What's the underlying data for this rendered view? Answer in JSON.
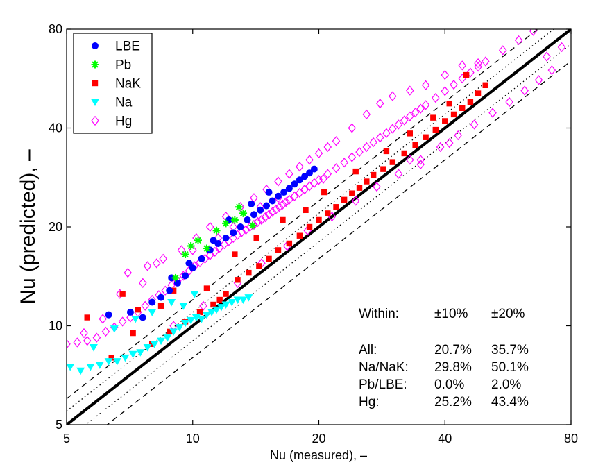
{
  "chart_data": {
    "type": "scatter",
    "title": "",
    "xlabel": "Nu (measured), –",
    "ylabel": "Nu (predicted), –",
    "x_scale": "log",
    "y_scale": "log",
    "xlim": [
      5,
      80
    ],
    "ylim": [
      5,
      80
    ],
    "x_ticks": [
      "5",
      "10",
      "20",
      "40",
      "80"
    ],
    "y_ticks": [
      "5",
      "10",
      "20",
      "40",
      "80"
    ],
    "grid": false,
    "legend_position": "top-left",
    "reference_lines": [
      {
        "kind": "1:1",
        "factor": 1.0,
        "style": "solid"
      },
      {
        "kind": "±10%",
        "factor": 1.1,
        "style": "dotted"
      },
      {
        "kind": "±10%",
        "factor": 0.9,
        "style": "dotted"
      },
      {
        "kind": "±20%",
        "factor": 1.2,
        "style": "dashed"
      },
      {
        "kind": "±20%",
        "factor": 0.8,
        "style": "dashed"
      }
    ],
    "series": [
      {
        "name": "LBE",
        "marker": "circle",
        "color": "#0000ff",
        "x": [
          6.3,
          7.1,
          7.6,
          8.0,
          8.4,
          8.8,
          9.2,
          9.6,
          10.0,
          10.5,
          11.0,
          11.5,
          12.0,
          12.5,
          13.0,
          13.5,
          14.0,
          14.5,
          15.0,
          15.5,
          16.0,
          16.5,
          17.0,
          17.5,
          18.0,
          18.5,
          19.0,
          19.5,
          12.2,
          13.8,
          15.2,
          11.2,
          9.8,
          8.9
        ],
        "y": [
          10.8,
          11.0,
          10.6,
          11.8,
          12.2,
          12.8,
          13.5,
          14.2,
          15.0,
          16.0,
          17.0,
          17.8,
          18.5,
          19.2,
          20.0,
          21.0,
          21.8,
          22.5,
          23.2,
          24.0,
          24.8,
          25.5,
          26.2,
          27.0,
          27.8,
          28.5,
          29.2,
          30.0,
          21.0,
          23.5,
          25.5,
          18.2,
          15.5,
          14.0
        ]
      },
      {
        "name": "Pb",
        "marker": "star",
        "color": "#00ff00",
        "x": [
          9.6,
          9.9,
          10.3,
          10.8,
          11.4,
          12.0,
          12.6,
          13.2,
          13.9,
          9.1,
          12.9
        ],
        "y": [
          16.5,
          17.5,
          18.2,
          17.2,
          19.5,
          20.5,
          21.0,
          22.0,
          20.2,
          14.0,
          23.0
        ]
      },
      {
        "name": "NaK",
        "marker": "square",
        "color": "#ff0000",
        "x": [
          5.6,
          6.4,
          7.2,
          8.0,
          8.8,
          9.6,
          10.4,
          11.2,
          12.0,
          12.8,
          13.6,
          14.4,
          15.2,
          16.0,
          17.0,
          18.0,
          19.0,
          20.0,
          21.0,
          22.0,
          23.0,
          24.0,
          25.0,
          26.0,
          27.0,
          28.5,
          30.0,
          32.0,
          34.0,
          36.0,
          38.0,
          40.0,
          42.0,
          44.0,
          46.0,
          48.0,
          50.0,
          7.4,
          9.0,
          10.8,
          12.6,
          14.2,
          16.4,
          18.6,
          20.6,
          24.5,
          29.0,
          33.0,
          37.5,
          41.0,
          45.0,
          6.8,
          8.4,
          11.6
        ],
        "y": [
          10.6,
          8.0,
          9.5,
          8.8,
          9.6,
          10.3,
          11.0,
          11.6,
          12.5,
          13.8,
          14.5,
          15.2,
          16.0,
          17.0,
          17.8,
          18.8,
          20.0,
          21.0,
          22.0,
          23.0,
          24.2,
          25.3,
          26.3,
          27.5,
          28.8,
          30.0,
          31.5,
          33.5,
          35.5,
          37.5,
          39.5,
          42.0,
          44.0,
          46.0,
          48.0,
          51.0,
          54.0,
          11.2,
          12.8,
          13.0,
          16.5,
          18.5,
          21.0,
          22.5,
          25.5,
          29.5,
          34.0,
          38.5,
          43.0,
          47.5,
          58.0,
          12.5,
          11.5,
          12.0
        ]
      },
      {
        "name": "Na",
        "marker": "triangle-down",
        "color": "#00ffff",
        "x": [
          5.1,
          5.4,
          5.7,
          6.0,
          6.3,
          6.6,
          6.9,
          7.2,
          7.5,
          7.8,
          8.1,
          8.4,
          8.7,
          9.0,
          9.3,
          9.6,
          9.9,
          10.2,
          10.5,
          10.8,
          11.1,
          11.4,
          11.7,
          12.0,
          12.4,
          12.8,
          13.2,
          13.6,
          8.0,
          7.3,
          6.5,
          5.8,
          8.9,
          9.5,
          10.1
        ],
        "y": [
          7.5,
          7.3,
          7.5,
          7.6,
          7.8,
          7.8,
          8.0,
          8.2,
          8.3,
          8.6,
          8.8,
          9.0,
          9.2,
          9.6,
          9.9,
          10.2,
          10.4,
          10.6,
          10.5,
          10.8,
          11.0,
          11.2,
          11.4,
          11.6,
          11.8,
          12.0,
          12.0,
          12.2,
          11.0,
          10.5,
          9.8,
          8.6,
          11.8,
          11.5,
          12.5
        ]
      },
      {
        "name": "Hg",
        "marker": "diamond",
        "color": "#ff00ff",
        "x": [
          5.0,
          5.3,
          5.6,
          5.9,
          6.2,
          6.5,
          6.8,
          7.1,
          7.4,
          7.7,
          8.0,
          8.3,
          8.6,
          8.9,
          9.2,
          9.5,
          9.8,
          10.1,
          10.4,
          10.7,
          11.0,
          11.3,
          11.6,
          11.9,
          12.2,
          12.5,
          12.8,
          13.1,
          13.4,
          13.7,
          14.0,
          14.3,
          14.6,
          14.9,
          15.2,
          15.5,
          15.8,
          16.1,
          16.4,
          16.7,
          17.0,
          17.5,
          18.0,
          18.5,
          19.0,
          19.5,
          20.0,
          21.0,
          22.0,
          23.0,
          24.0,
          25.0,
          26.0,
          27.0,
          28.0,
          29.0,
          30.0,
          31.0,
          32.0,
          33.0,
          34.0,
          35.0,
          36.0,
          38.0,
          40.0,
          42.0,
          44.0,
          46.0,
          48.0,
          50.0,
          55.0,
          60.0,
          65.0,
          70.0,
          76.0,
          7.0,
          7.8,
          8.5,
          9.4,
          10.2,
          11.0,
          12.0,
          13.0,
          14.0,
          15.0,
          16.0,
          17.0,
          18.0,
          19.0,
          20.0,
          21.0,
          22.0,
          24.0,
          26.0,
          28.0,
          30.0,
          33.0,
          36.0,
          40.0,
          44.0,
          48.0,
          9.0,
          10.6,
          12.8,
          14.6,
          16.8,
          18.8,
          21.5,
          24.5,
          27.5,
          31.0,
          35.0,
          39.0,
          43.0,
          47.0,
          52.0,
          57.0,
          62.0,
          67.0,
          72.0,
          33.0,
          35.0,
          41.0,
          20.5,
          18.5,
          16.0,
          14.5,
          12.5,
          11.5,
          10.0,
          8.2,
          7.6,
          6.7,
          6.1,
          5.5
        ],
        "y": [
          8.8,
          8.9,
          9.0,
          9.2,
          9.6,
          9.9,
          10.3,
          10.6,
          11.0,
          11.5,
          12.0,
          12.4,
          12.8,
          13.3,
          13.7,
          14.2,
          14.7,
          15.2,
          15.6,
          16.0,
          16.4,
          16.8,
          17.3,
          17.7,
          18.1,
          18.5,
          18.9,
          19.3,
          19.6,
          20.0,
          20.3,
          20.7,
          21.0,
          21.4,
          21.8,
          22.2,
          22.6,
          23.0,
          23.4,
          23.8,
          24.2,
          24.8,
          25.4,
          26.0,
          26.6,
          27.2,
          27.8,
          29.0,
          30.2,
          31.4,
          32.6,
          33.8,
          35.0,
          36.2,
          37.4,
          38.6,
          39.8,
          41.0,
          42.2,
          43.4,
          44.6,
          45.8,
          47.0,
          49.4,
          51.8,
          54.2,
          56.6,
          59.0,
          61.4,
          63.8,
          69.0,
          74.0,
          79.0,
          66.0,
          70.5,
          14.5,
          15.2,
          16.0,
          17.0,
          18.5,
          20.0,
          21.5,
          23.0,
          24.5,
          26.0,
          27.5,
          29.0,
          30.5,
          32.0,
          33.5,
          35.0,
          36.5,
          40.0,
          44.0,
          47.5,
          50.0,
          52.0,
          54.0,
          58.0,
          62.0,
          63.0,
          10.0,
          11.5,
          13.5,
          15.5,
          17.5,
          19.5,
          21.5,
          24.0,
          26.5,
          29.0,
          32.0,
          35.0,
          38.0,
          41.0,
          44.5,
          48.0,
          52.0,
          56.0,
          60.0,
          32.0,
          31.0,
          36.0,
          28.0,
          26.0,
          24.5,
          23.0,
          20.0,
          18.5,
          17.0,
          15.5,
          13.5,
          12.5,
          10.5,
          9.5
        ]
      }
    ]
  },
  "legend": {
    "items": [
      {
        "label": "LBE",
        "marker": "circle",
        "color": "#0000ff"
      },
      {
        "label": "Pb",
        "marker": "star",
        "color": "#00ff00"
      },
      {
        "label": "NaK",
        "marker": "square",
        "color": "#ff0000"
      },
      {
        "label": "Na",
        "marker": "triangle-down",
        "color": "#00ffff"
      },
      {
        "label": "Hg",
        "marker": "diamond",
        "color": "#ff00ff"
      }
    ]
  },
  "stats_table": {
    "header": {
      "label": "Within:",
      "col1": "±10%",
      "col2": "±20%"
    },
    "rows": [
      {
        "label": "All:",
        "col1": "20.7%",
        "col2": "35.7%"
      },
      {
        "label": "Na/NaK:",
        "col1": "29.8%",
        "col2": "50.1%"
      },
      {
        "label": "Pb/LBE:",
        "col1": "0.0%",
        "col2": "2.0%"
      },
      {
        "label": "Hg:",
        "col1": "25.2%",
        "col2": "43.4%"
      }
    ]
  }
}
